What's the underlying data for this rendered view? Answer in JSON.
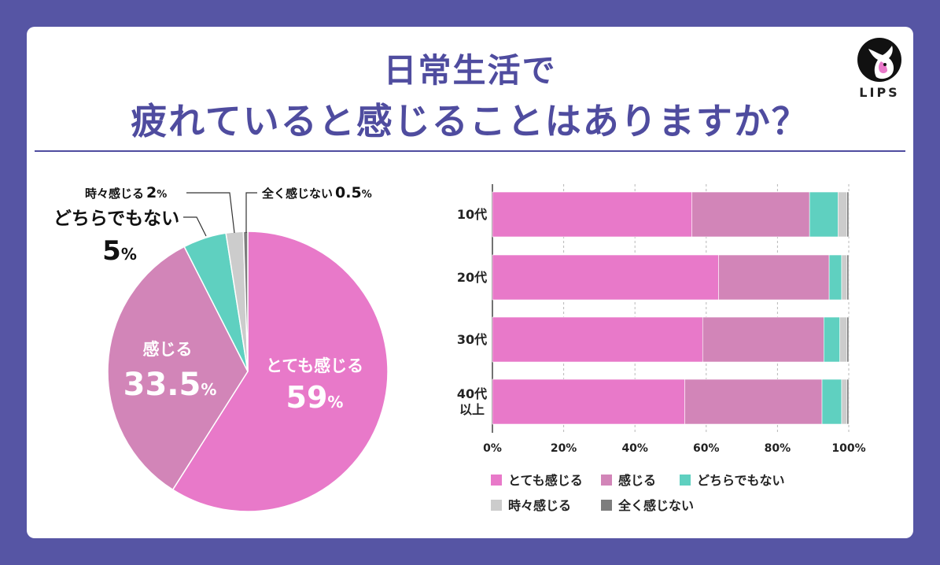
{
  "title": {
    "line1": "日常生活で",
    "line2": "疲れていると感じることはありますか？"
  },
  "logo": {
    "text": "LIPS"
  },
  "colors": {
    "very": "#e879c9",
    "feel": "#d285b8",
    "neither": "#5fd0c0",
    "sometimes": "#cccccc",
    "never": "#7d7d7d",
    "accent": "#4f4c9f"
  },
  "chart_data": [
    {
      "type": "pie",
      "slices": [
        {
          "label": "とても感じる",
          "value": 59,
          "display": "59",
          "unit": "%"
        },
        {
          "label": "感じる",
          "value": 33.5,
          "display": "33.5",
          "unit": "%"
        },
        {
          "label": "どちらでもない",
          "value": 5,
          "display": "5",
          "unit": "%"
        },
        {
          "label": "時々感じる",
          "value": 2,
          "display": "2",
          "unit": "%"
        },
        {
          "label": "全く感じない",
          "value": 0.5,
          "display": "0.5",
          "unit": "%"
        }
      ]
    },
    {
      "type": "bar",
      "orientation": "horizontal",
      "stacked": true,
      "categories": [
        "10代",
        "20代",
        "30代",
        "40代\n以上"
      ],
      "series": [
        {
          "name": "とても感じる",
          "values": [
            56,
            63.5,
            59,
            54
          ]
        },
        {
          "name": "感じる",
          "values": [
            33,
            31,
            34,
            38.5
          ]
        },
        {
          "name": "どちらでもない",
          "values": [
            8,
            3.5,
            4.5,
            5.5
          ]
        },
        {
          "name": "時々感じる",
          "values": [
            2.5,
            1.5,
            2,
            1.5
          ]
        },
        {
          "name": "全く感じない",
          "values": [
            0.5,
            0.5,
            0.5,
            0.5
          ]
        }
      ],
      "xlim": [
        0,
        100
      ],
      "ticks": [
        "0%",
        "20%",
        "40%",
        "60%",
        "80%",
        "100%"
      ],
      "grid": true,
      "legend_position": "bottom"
    }
  ]
}
